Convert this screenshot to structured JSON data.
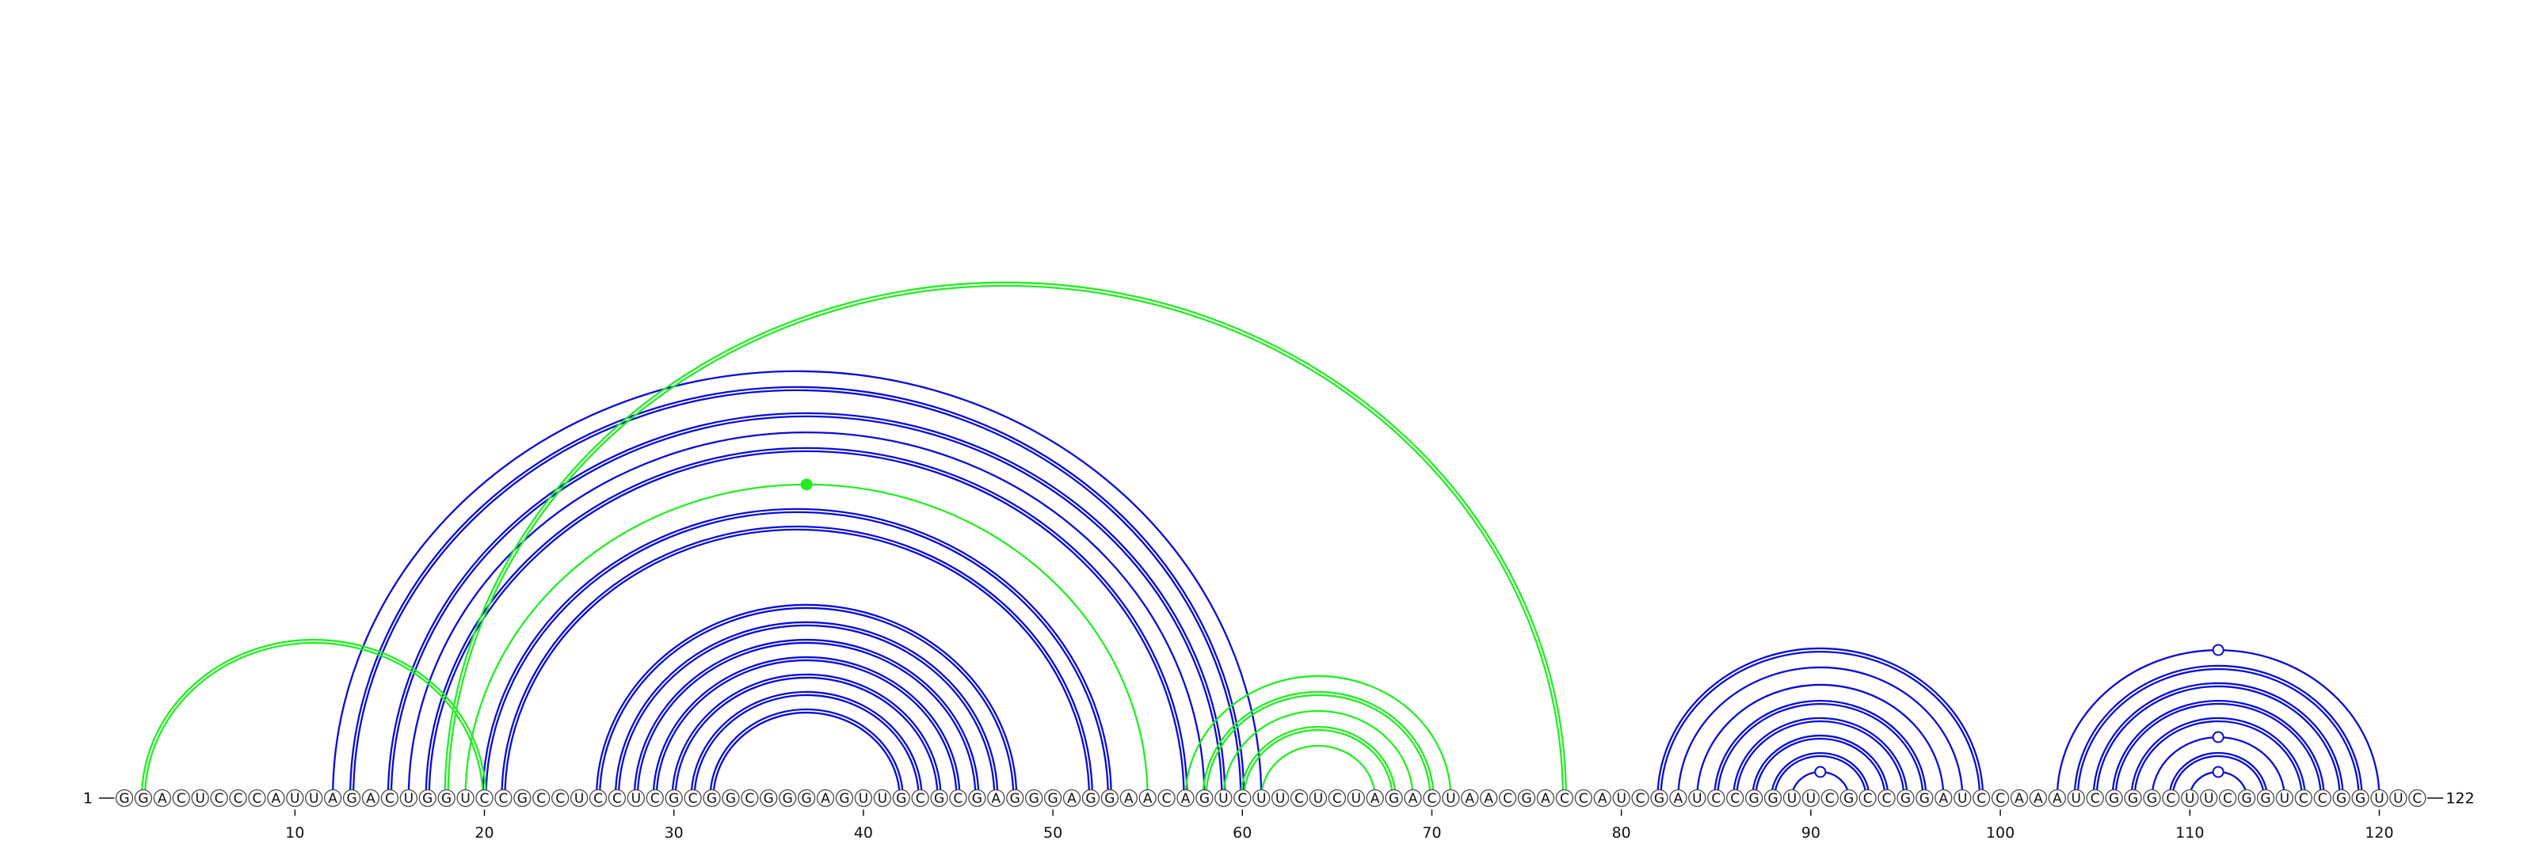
{
  "diagram": {
    "sequence": "GGACUCCCAUUAGACUGGUCCGCCUCCUCGCGGCGGGAGUUGCGCGAGGGAGGAACAGUCUUCUCUAGACUAACGACCAUCGAUCCGGUUCGCCGGAUCCAAAUCGGGCUUCGGUCCGGUUC",
    "start_label": "1",
    "end_label": "122",
    "ticks": [
      10,
      20,
      30,
      40,
      50,
      60,
      70,
      80,
      90,
      100,
      110,
      120
    ],
    "colors": {
      "blue": "#0b0bd6",
      "green": "#22ee22",
      "nucleotide_fill": "#ffffff",
      "nucleotide_stroke": "#444444",
      "text": "#111111"
    },
    "arcs": [
      {
        "from": 12,
        "to": 61,
        "color": "blue",
        "strands": 1
      },
      {
        "from": 13,
        "to": 60,
        "color": "blue",
        "strands": 2
      },
      {
        "from": 15,
        "to": 59,
        "color": "blue",
        "strands": 2
      },
      {
        "from": 16,
        "to": 58,
        "color": "blue",
        "strands": 1
      },
      {
        "from": 17,
        "to": 57,
        "color": "blue",
        "strands": 2
      },
      {
        "from": 19,
        "to": 55,
        "color": "green",
        "strands": 1,
        "marker": "dot"
      },
      {
        "from": 20,
        "to": 53,
        "color": "blue",
        "strands": 2
      },
      {
        "from": 21,
        "to": 52,
        "color": "blue",
        "strands": 2
      },
      {
        "from": 26,
        "to": 48,
        "color": "blue",
        "strands": 2
      },
      {
        "from": 27,
        "to": 47,
        "color": "blue",
        "strands": 2
      },
      {
        "from": 28,
        "to": 46,
        "color": "blue",
        "strands": 2
      },
      {
        "from": 29,
        "to": 45,
        "color": "blue",
        "strands": 2
      },
      {
        "from": 30,
        "to": 44,
        "color": "blue",
        "strands": 2
      },
      {
        "from": 31,
        "to": 43,
        "color": "blue",
        "strands": 2
      },
      {
        "from": 32,
        "to": 42,
        "color": "blue",
        "strands": 2
      },
      {
        "from": 2,
        "to": 20,
        "color": "green",
        "strands": 2
      },
      {
        "from": 18,
        "to": 77,
        "color": "green",
        "strands": 2
      },
      {
        "from": 57,
        "to": 71,
        "color": "green",
        "strands": 1
      },
      {
        "from": 58,
        "to": 70,
        "color": "green",
        "strands": 2
      },
      {
        "from": 59,
        "to": 69,
        "color": "green",
        "strands": 1
      },
      {
        "from": 60,
        "to": 68,
        "color": "green",
        "strands": 2
      },
      {
        "from": 61,
        "to": 67,
        "color": "green",
        "strands": 1
      },
      {
        "from": 82,
        "to": 99,
        "color": "blue",
        "strands": 2
      },
      {
        "from": 83,
        "to": 98,
        "color": "blue",
        "strands": 1
      },
      {
        "from": 84,
        "to": 97,
        "color": "blue",
        "strands": 1
      },
      {
        "from": 85,
        "to": 96,
        "color": "blue",
        "strands": 2
      },
      {
        "from": 86,
        "to": 95,
        "color": "blue",
        "strands": 2
      },
      {
        "from": 87,
        "to": 94,
        "color": "blue",
        "strands": 2
      },
      {
        "from": 88,
        "to": 93,
        "color": "blue",
        "strands": 2
      },
      {
        "from": 89,
        "to": 92,
        "color": "blue",
        "strands": 1,
        "marker": "circle"
      },
      {
        "from": 103,
        "to": 120,
        "color": "blue",
        "strands": 1,
        "marker": "circle"
      },
      {
        "from": 104,
        "to": 119,
        "color": "blue",
        "strands": 2
      },
      {
        "from": 105,
        "to": 118,
        "color": "blue",
        "strands": 2
      },
      {
        "from": 106,
        "to": 117,
        "color": "blue",
        "strands": 2
      },
      {
        "from": 107,
        "to": 116,
        "color": "blue",
        "strands": 2
      },
      {
        "from": 108,
        "to": 115,
        "color": "blue",
        "strands": 1,
        "marker": "circle"
      },
      {
        "from": 109,
        "to": 114,
        "color": "blue",
        "strands": 2
      },
      {
        "from": 110,
        "to": 113,
        "color": "blue",
        "strands": 1,
        "marker": "circle"
      }
    ]
  }
}
